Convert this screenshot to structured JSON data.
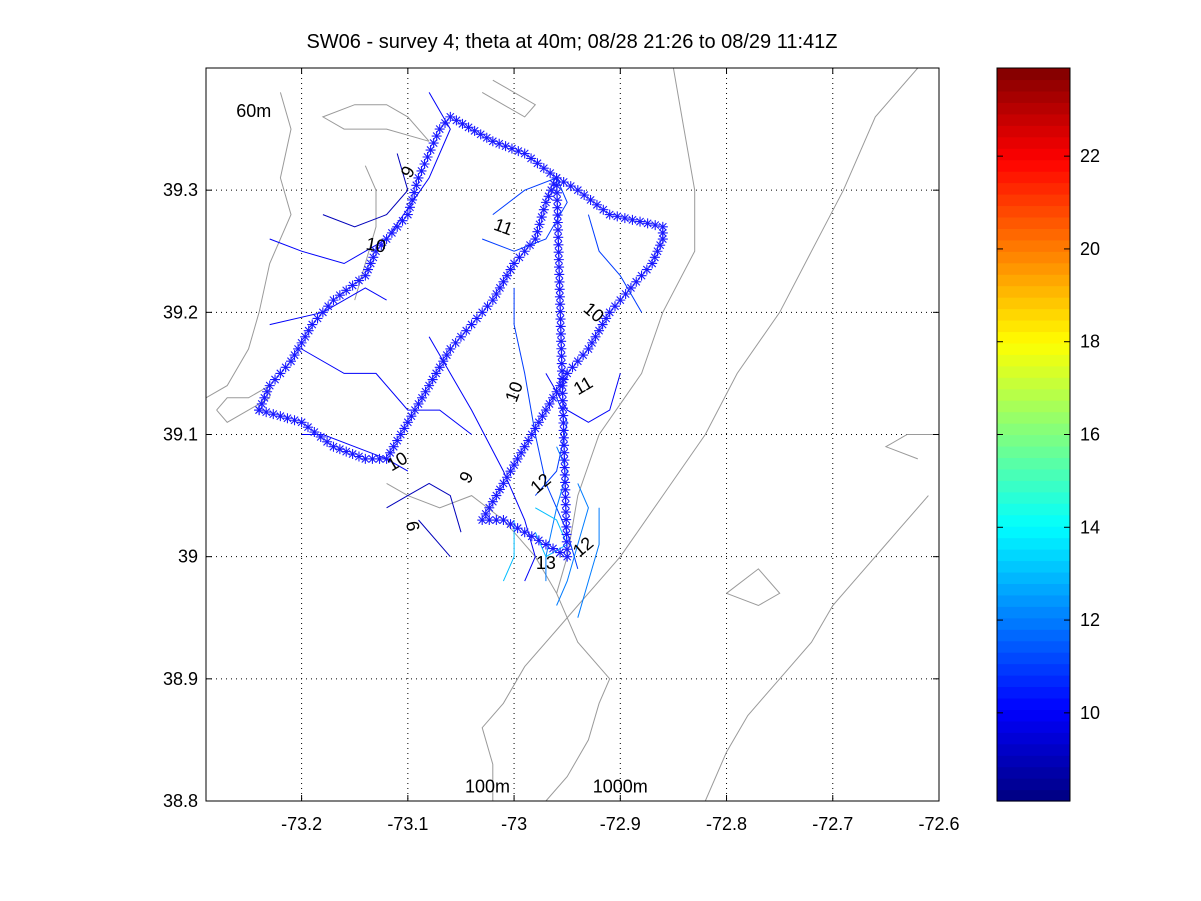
{
  "chart_data": {
    "type": "contour",
    "title": "SW06 - survey 4; theta at 40m; 08/28 21:26 to 08/29 11:41Z",
    "xlabel": "",
    "ylabel": "",
    "xlim": [
      -73.29,
      -72.6
    ],
    "ylim": [
      38.8,
      39.4
    ],
    "xticks": [
      -73.2,
      -73.1,
      -73.0,
      -72.9,
      -72.8,
      -72.7,
      -72.6
    ],
    "xtick_labels": [
      "-73.2",
      "-73.1",
      "-73",
      "-72.9",
      "-72.8",
      "-72.7",
      "-72.6"
    ],
    "yticks": [
      38.8,
      38.9,
      39.0,
      39.1,
      39.2,
      39.3
    ],
    "ytick_labels": [
      "38.8",
      "38.9",
      "39",
      "39.1",
      "39.2",
      "39.3"
    ],
    "grid": true,
    "colorbar": {
      "range": [
        8.1,
        23.9
      ],
      "ticks": [
        10,
        12,
        14,
        16,
        18,
        20,
        22
      ],
      "tick_labels": [
        "10",
        "12",
        "14",
        "16",
        "18",
        "20",
        "22"
      ],
      "colormap": "jet"
    },
    "isobath_labels": [
      {
        "text": "60m",
        "lon": -73.245,
        "lat": 39.365
      },
      {
        "text": "100m",
        "lon": -73.025,
        "lat": 38.812
      },
      {
        "text": "1000m",
        "lon": -72.9,
        "lat": 38.812
      }
    ],
    "isobaths": [
      [
        [
          -73.22,
          39.38
        ],
        [
          -73.21,
          39.35
        ],
        [
          -73.22,
          39.31
        ],
        [
          -73.21,
          39.28
        ],
        [
          -73.23,
          39.24
        ],
        [
          -73.24,
          39.2
        ],
        [
          -73.25,
          39.17
        ],
        [
          -73.27,
          39.14
        ],
        [
          -73.29,
          39.13
        ]
      ],
      [
        [
          -73.14,
          39.32
        ],
        [
          -73.13,
          39.3
        ],
        [
          -73.13,
          39.27
        ],
        [
          -73.14,
          39.24
        ],
        [
          -73.15,
          39.21
        ]
      ],
      [
        [
          -73.08,
          39.34
        ],
        [
          -73.1,
          39.36
        ],
        [
          -73.12,
          39.37
        ],
        [
          -73.15,
          39.37
        ],
        [
          -73.18,
          39.36
        ],
        [
          -73.16,
          39.35
        ],
        [
          -73.12,
          39.35
        ],
        [
          -73.08,
          39.34
        ]
      ],
      [
        [
          -73.02,
          39.39
        ],
        [
          -73.0,
          39.38
        ],
        [
          -72.98,
          39.37
        ],
        [
          -72.99,
          39.36
        ],
        [
          -73.01,
          39.37
        ],
        [
          -73.03,
          39.38
        ]
      ],
      [
        [
          -73.28,
          39.12
        ],
        [
          -73.27,
          39.13
        ],
        [
          -73.25,
          39.13
        ],
        [
          -73.23,
          39.14
        ],
        [
          -73.23,
          39.13
        ],
        [
          -73.25,
          39.12
        ],
        [
          -73.27,
          39.11
        ],
        [
          -73.28,
          39.12
        ]
      ],
      [
        [
          -73.12,
          39.06
        ],
        [
          -73.1,
          39.05
        ],
        [
          -73.07,
          39.04
        ],
        [
          -73.04,
          39.05
        ],
        [
          -73.01,
          39.03
        ],
        [
          -72.98,
          39.0
        ],
        [
          -72.96,
          38.97
        ],
        [
          -72.94,
          38.93
        ],
        [
          -72.91,
          38.9
        ],
        [
          -72.92,
          38.88
        ],
        [
          -72.93,
          38.85
        ],
        [
          -72.95,
          38.82
        ],
        [
          -72.97,
          38.8
        ]
      ],
      [
        [
          -72.85,
          39.4
        ],
        [
          -72.84,
          39.35
        ],
        [
          -72.83,
          39.3
        ],
        [
          -72.83,
          39.25
        ],
        [
          -72.86,
          39.2
        ],
        [
          -72.88,
          39.15
        ],
        [
          -72.92,
          39.1
        ],
        [
          -72.94,
          39.05
        ],
        [
          -72.95,
          39.0
        ],
        [
          -72.96,
          38.97
        ]
      ],
      [
        [
          -73.02,
          38.8
        ],
        [
          -73.02,
          38.83
        ],
        [
          -73.03,
          38.86
        ],
        [
          -73.01,
          38.88
        ],
        [
          -72.99,
          38.91
        ],
        [
          -72.96,
          38.94
        ],
        [
          -72.93,
          38.97
        ],
        [
          -72.9,
          39.0
        ],
        [
          -72.86,
          39.05
        ],
        [
          -72.82,
          39.1
        ],
        [
          -72.79,
          39.15
        ],
        [
          -72.75,
          39.2
        ],
        [
          -72.72,
          39.25
        ],
        [
          -72.69,
          39.3
        ],
        [
          -72.66,
          39.36
        ],
        [
          -72.62,
          39.4
        ]
      ],
      [
        [
          -72.82,
          38.8
        ],
        [
          -72.8,
          38.84
        ],
        [
          -72.78,
          38.87
        ],
        [
          -72.75,
          38.9
        ],
        [
          -72.72,
          38.93
        ],
        [
          -72.7,
          38.96
        ],
        [
          -72.67,
          38.99
        ],
        [
          -72.64,
          39.02
        ],
        [
          -72.61,
          39.05
        ]
      ],
      [
        [
          -72.8,
          38.97
        ],
        [
          -72.77,
          38.96
        ],
        [
          -72.75,
          38.97
        ],
        [
          -72.77,
          38.99
        ],
        [
          -72.8,
          38.97
        ]
      ],
      [
        [
          -72.62,
          39.08
        ],
        [
          -72.65,
          39.09
        ],
        [
          -72.63,
          39.1
        ],
        [
          -72.6,
          39.1
        ]
      ]
    ],
    "contour_levels": [
      9,
      10,
      11,
      12,
      13
    ],
    "contour_lines": [
      {
        "level": 9,
        "points": [
          [
            -73.11,
            39.33
          ],
          [
            -73.1,
            39.3
          ],
          [
            -73.12,
            39.28
          ],
          [
            -73.15,
            39.27
          ],
          [
            -73.18,
            39.28
          ]
        ]
      },
      {
        "level": 9,
        "points": [
          [
            -73.12,
            39.04
          ],
          [
            -73.1,
            39.05
          ],
          [
            -73.08,
            39.06
          ],
          [
            -73.06,
            39.05
          ],
          [
            -73.05,
            39.02
          ]
        ]
      },
      {
        "level": 9,
        "points": [
          [
            -73.09,
            39.03
          ],
          [
            -73.07,
            39.01
          ],
          [
            -73.06,
            39.0
          ]
        ]
      },
      {
        "level": 10,
        "points": [
          [
            -73.08,
            39.38
          ],
          [
            -73.06,
            39.35
          ],
          [
            -73.08,
            39.31
          ],
          [
            -73.12,
            39.26
          ],
          [
            -73.16,
            39.24
          ],
          [
            -73.2,
            39.25
          ],
          [
            -73.23,
            39.26
          ]
        ]
      },
      {
        "level": 10,
        "points": [
          [
            -73.23,
            39.19
          ],
          [
            -73.18,
            39.2
          ],
          [
            -73.14,
            39.22
          ],
          [
            -73.12,
            39.21
          ]
        ]
      },
      {
        "level": 10,
        "points": [
          [
            -73.2,
            39.17
          ],
          [
            -73.16,
            39.15
          ],
          [
            -73.13,
            39.15
          ],
          [
            -73.1,
            39.12
          ],
          [
            -73.07,
            39.12
          ],
          [
            -73.04,
            39.1
          ]
        ]
      },
      {
        "level": 10,
        "points": [
          [
            -73.08,
            39.18
          ],
          [
            -73.06,
            39.15
          ],
          [
            -73.04,
            39.12
          ],
          [
            -73.01,
            39.07
          ],
          [
            -72.99,
            39.03
          ],
          [
            -72.98,
            39.0
          ],
          [
            -72.99,
            38.98
          ]
        ]
      },
      {
        "level": 10,
        "points": [
          [
            -72.9,
            39.15
          ],
          [
            -72.91,
            39.12
          ],
          [
            -72.93,
            39.11
          ],
          [
            -72.95,
            39.12
          ],
          [
            -72.97,
            39.15
          ]
        ]
      },
      {
        "level": 10,
        "points": [
          [
            -73.2,
            39.1
          ],
          [
            -73.18,
            39.1
          ],
          [
            -73.15,
            39.09
          ],
          [
            -73.12,
            39.08
          ],
          [
            -73.1,
            39.07
          ]
        ]
      },
      {
        "level": 11,
        "points": [
          [
            -73.02,
            39.28
          ],
          [
            -72.99,
            39.3
          ],
          [
            -72.96,
            39.31
          ],
          [
            -72.95,
            39.29
          ],
          [
            -72.97,
            39.26
          ],
          [
            -73.0,
            39.25
          ],
          [
            -73.03,
            39.26
          ]
        ]
      },
      {
        "level": 11,
        "points": [
          [
            -73.0,
            39.22
          ],
          [
            -73.0,
            39.19
          ],
          [
            -72.99,
            39.15
          ],
          [
            -72.98,
            39.1
          ],
          [
            -72.97,
            39.06
          ],
          [
            -72.95,
            39.02
          ],
          [
            -72.94,
            38.99
          ]
        ]
      },
      {
        "level": 11,
        "points": [
          [
            -72.93,
            39.28
          ],
          [
            -72.92,
            39.25
          ],
          [
            -72.9,
            39.23
          ],
          [
            -72.88,
            39.2
          ]
        ]
      },
      {
        "level": 11,
        "points": [
          [
            -72.96,
            39.13
          ],
          [
            -72.95,
            39.11
          ],
          [
            -72.96,
            39.07
          ],
          [
            -72.98,
            39.05
          ]
        ]
      },
      {
        "level": 12,
        "points": [
          [
            -72.96,
            39.09
          ],
          [
            -72.95,
            39.07
          ],
          [
            -72.96,
            39.04
          ],
          [
            -72.97,
            39.0
          ],
          [
            -72.97,
            38.98
          ]
        ]
      },
      {
        "level": 12,
        "points": [
          [
            -72.94,
            39.06
          ],
          [
            -72.93,
            39.04
          ],
          [
            -72.94,
            39.01
          ],
          [
            -72.95,
            38.98
          ],
          [
            -72.96,
            38.96
          ]
        ]
      },
      {
        "level": 12,
        "points": [
          [
            -72.92,
            39.04
          ],
          [
            -72.92,
            39.01
          ],
          [
            -72.93,
            38.98
          ],
          [
            -72.94,
            38.95
          ]
        ]
      },
      {
        "level": 13,
        "points": [
          [
            -72.98,
            39.04
          ],
          [
            -72.96,
            39.03
          ],
          [
            -72.95,
            39.01
          ],
          [
            -72.97,
            39.0
          ],
          [
            -72.98,
            39.02
          ]
        ]
      },
      {
        "level": 13,
        "points": [
          [
            -73.0,
            39.03
          ],
          [
            -73.0,
            39.0
          ],
          [
            -73.01,
            38.98
          ]
        ]
      }
    ],
    "contour_labels": [
      {
        "text": "9",
        "lon": -73.1,
        "lat": 39.315,
        "rot": -60
      },
      {
        "text": "9",
        "lon": -73.045,
        "lat": 39.065,
        "rot": -60
      },
      {
        "text": "9",
        "lon": -73.095,
        "lat": 39.025,
        "rot": -100
      },
      {
        "text": "10",
        "lon": -73.13,
        "lat": 39.255,
        "rot": 10
      },
      {
        "text": "10",
        "lon": -72.925,
        "lat": 39.2,
        "rot": 40
      },
      {
        "text": "10",
        "lon": -73.0,
        "lat": 39.135,
        "rot": -70
      },
      {
        "text": "10",
        "lon": -73.11,
        "lat": 39.078,
        "rot": -30
      },
      {
        "text": "11",
        "lon": -73.01,
        "lat": 39.27,
        "rot": 20
      },
      {
        "text": "11",
        "lon": -72.935,
        "lat": 39.14,
        "rot": -30
      },
      {
        "text": "12",
        "lon": -72.975,
        "lat": 39.06,
        "rot": -40
      },
      {
        "text": "12",
        "lon": -72.935,
        "lat": 39.008,
        "rot": -40
      },
      {
        "text": "13",
        "lon": -72.97,
        "lat": 38.995,
        "rot": 0
      }
    ],
    "track": [
      [
        -73.24,
        39.12
      ],
      [
        -73.23,
        39.14
      ],
      [
        -73.21,
        39.16
      ],
      [
        -73.19,
        39.19
      ],
      [
        -73.17,
        39.21
      ],
      [
        -73.14,
        39.23
      ],
      [
        -73.13,
        39.25
      ],
      [
        -73.1,
        39.28
      ],
      [
        -73.09,
        39.31
      ],
      [
        -73.07,
        39.35
      ],
      [
        -73.06,
        39.36
      ],
      [
        -73.02,
        39.34
      ],
      [
        -72.99,
        39.33
      ],
      [
        -72.96,
        39.31
      ],
      [
        -72.94,
        39.3
      ],
      [
        -72.91,
        39.28
      ],
      [
        -72.86,
        39.27
      ],
      [
        -72.86,
        39.26
      ],
      [
        -72.87,
        39.24
      ],
      [
        -72.89,
        39.22
      ],
      [
        -72.91,
        39.2
      ],
      [
        -72.93,
        39.17
      ],
      [
        -72.95,
        39.15
      ],
      [
        -72.97,
        39.12
      ],
      [
        -72.99,
        39.09
      ],
      [
        -73.01,
        39.06
      ],
      [
        -73.03,
        39.03
      ],
      [
        -73.01,
        39.03
      ],
      [
        -72.99,
        39.02
      ],
      [
        -72.97,
        39.01
      ],
      [
        -72.95,
        39.0
      ],
      [
        -72.96,
        39.31
      ],
      [
        -72.97,
        39.29
      ],
      [
        -72.98,
        39.26
      ],
      [
        -73.0,
        39.24
      ],
      [
        -73.02,
        39.21
      ],
      [
        -73.04,
        39.19
      ],
      [
        -73.06,
        39.17
      ],
      [
        -73.08,
        39.14
      ],
      [
        -73.1,
        39.11
      ],
      [
        -73.12,
        39.08
      ],
      [
        -73.14,
        39.08
      ],
      [
        -73.17,
        39.09
      ],
      [
        -73.2,
        39.11
      ],
      [
        -73.24,
        39.12
      ]
    ]
  }
}
